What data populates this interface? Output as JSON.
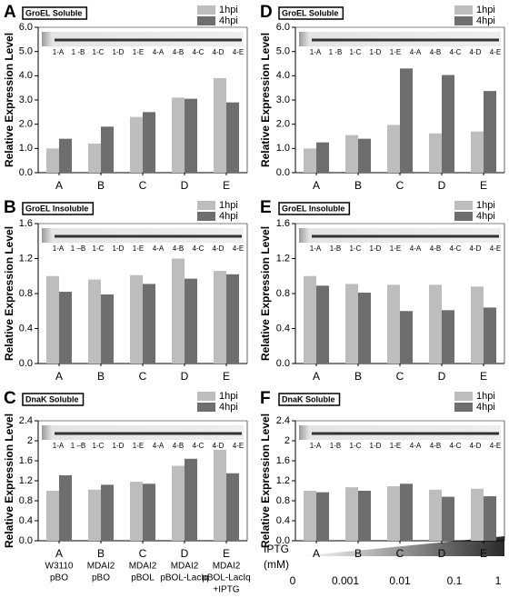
{
  "chart_data": [
    {
      "type": "bar",
      "label": "A",
      "title": "GroEL Soluble",
      "lanes": [
        "1-A",
        "1 -B",
        "1-C",
        "1-D",
        "1-E",
        "4-A",
        "4-B",
        "4-C",
        "4-D",
        "4-E"
      ],
      "categories": [
        "A",
        "B",
        "C",
        "D",
        "E"
      ],
      "series": [
        {
          "name": "1hpi",
          "color": "#bdbdbd",
          "values": [
            1.0,
            1.2,
            2.3,
            3.1,
            3.9
          ]
        },
        {
          "name": "4hpi",
          "color": "#6e6e6e",
          "values": [
            1.4,
            1.9,
            2.5,
            3.05,
            2.9
          ]
        }
      ],
      "y_label": "Relative Expression Level",
      "ylim": [
        0,
        6
      ],
      "yticks": [
        {
          "value": 0,
          "label": "0.0"
        },
        {
          "value": 1,
          "label": "1.0"
        },
        {
          "value": 2,
          "label": "2.0"
        },
        {
          "value": 3,
          "label": "3.0"
        },
        {
          "value": 4,
          "label": "4.0"
        },
        {
          "value": 5,
          "label": "5.0"
        },
        {
          "value": 6,
          "label": "6.0"
        }
      ]
    },
    {
      "type": "bar",
      "label": "B",
      "title": "GroEL Insoluble",
      "lanes": [
        "1-A",
        "1 –B",
        "1-C",
        "1-D",
        "1-E",
        "4-A",
        "4-B",
        "4-C",
        "4-D",
        "4-E"
      ],
      "categories": [
        "A",
        "B",
        "C",
        "D",
        "E"
      ],
      "series": [
        {
          "name": "1hpi",
          "color": "#bdbdbd",
          "values": [
            1.0,
            0.96,
            1.01,
            1.2,
            1.06
          ]
        },
        {
          "name": "4hpi",
          "color": "#6e6e6e",
          "values": [
            0.82,
            0.79,
            0.91,
            0.97,
            1.02
          ]
        }
      ],
      "y_label": "Relative Expression Level",
      "ylim": [
        0,
        1.6
      ],
      "yticks": [
        {
          "value": 0,
          "label": "0.0"
        },
        0.4,
        0.8,
        1.2,
        1.6
      ]
    },
    {
      "type": "bar",
      "label": "C",
      "title": "DnaK Soluble",
      "lanes": [
        "1-A",
        "1 –B",
        "1-C",
        "1-D",
        "1-E",
        "4-A",
        "4-B",
        "4-C",
        "4-D",
        "4-E"
      ],
      "categories": [
        [
          "A",
          "W3110",
          "pBO"
        ],
        [
          "B",
          "MDAI2",
          "pBO"
        ],
        [
          "C",
          "MDAI2",
          "pBOL"
        ],
        [
          "D",
          "MDAI2",
          "pBOL-LacIq"
        ],
        [
          "E",
          "MDAI2",
          "pBOL-LacIq",
          "+IPTG"
        ]
      ],
      "series": [
        {
          "name": "1hpi",
          "color": "#bdbdbd",
          "values": [
            1.0,
            1.02,
            1.18,
            1.5,
            1.82
          ]
        },
        {
          "name": "4hpi",
          "color": "#6e6e6e",
          "values": [
            1.31,
            1.12,
            1.14,
            1.64,
            1.35
          ]
        }
      ],
      "y_label": "Relative Expression Level",
      "ylim": [
        0,
        2.4
      ],
      "yticks": [
        {
          "value": 0,
          "label": "0.0"
        },
        0.4,
        0.8,
        1.2,
        1.6,
        2.0,
        2.4
      ]
    },
    {
      "type": "bar",
      "label": "D",
      "title": "GroEL Soluble",
      "lanes": [
        "1-A",
        "1 -B",
        "1-C",
        "1-D",
        "1-E",
        "4-A",
        "4-B",
        "4-C",
        "4-D",
        "4-E"
      ],
      "categories": [
        "A",
        "B",
        "C",
        "D",
        "E"
      ],
      "series": [
        {
          "name": "1hpi",
          "color": "#bdbdbd",
          "values": [
            1.0,
            1.55,
            1.97,
            1.62,
            1.7
          ]
        },
        {
          "name": "4hpi",
          "color": "#6e6e6e",
          "values": [
            1.25,
            1.4,
            4.3,
            4.03,
            3.37
          ]
        }
      ],
      "y_label": "Relative Expression Level",
      "ylim": [
        0,
        6
      ],
      "yticks": [
        {
          "value": 0,
          "label": "0.0"
        },
        {
          "value": 1,
          "label": "1.0"
        },
        {
          "value": 2,
          "label": "2.0"
        },
        {
          "value": 3,
          "label": "3.0"
        },
        {
          "value": 4,
          "label": "4.0"
        },
        {
          "value": 5,
          "label": "5.0"
        },
        {
          "value": 6,
          "label": "6.0"
        }
      ]
    },
    {
      "type": "bar",
      "label": "E",
      "title": "GroEL Insoluble",
      "lanes": [
        "1-A",
        "1-B",
        "1-C",
        "1-D",
        "1-E",
        "4-A",
        "4-B",
        "4-C",
        "4-D",
        "4-E"
      ],
      "categories": [
        "A",
        "B",
        "C",
        "D",
        "E"
      ],
      "series": [
        {
          "name": "1hpi",
          "color": "#bdbdbd",
          "values": [
            1.0,
            0.91,
            0.9,
            0.9,
            0.88
          ]
        },
        {
          "name": "4hpi",
          "color": "#6e6e6e",
          "values": [
            0.89,
            0.81,
            0.6,
            0.61,
            0.64
          ]
        }
      ],
      "y_label": "Relative Expression Level",
      "ylim": [
        0,
        1.6
      ],
      "yticks": [
        {
          "value": 0,
          "label": "0.0"
        },
        0.4,
        0.8,
        1.2,
        1.6
      ]
    },
    {
      "type": "bar",
      "label": "F",
      "title": "DnaK Soluble",
      "lanes": [
        "1-A",
        "1-B",
        "1-C",
        "1-D",
        "1-E",
        "4-A",
        "4-B",
        "4-C",
        "4-D",
        "4-E"
      ],
      "categories": [
        "A",
        "B",
        "C",
        "D",
        "E"
      ],
      "series": [
        {
          "name": "1hpi",
          "color": "#bdbdbd",
          "values": [
            1.0,
            1.07,
            1.09,
            1.02,
            1.04
          ]
        },
        {
          "name": "4hpi",
          "color": "#6e6e6e",
          "values": [
            0.97,
            1.0,
            1.14,
            0.88,
            0.89
          ]
        }
      ],
      "y_label": "Relative Expression Level",
      "ylim": [
        0,
        2.4
      ],
      "yticks": [
        {
          "value": 0,
          "label": "0.0"
        },
        0.4,
        0.8,
        1.2,
        1.6,
        2.0,
        2.4
      ]
    }
  ],
  "iptg": {
    "title": "IPTG",
    "unit": "(mM)",
    "levels": [
      "0",
      "0.001",
      "0.01",
      "0.1",
      "1"
    ]
  }
}
